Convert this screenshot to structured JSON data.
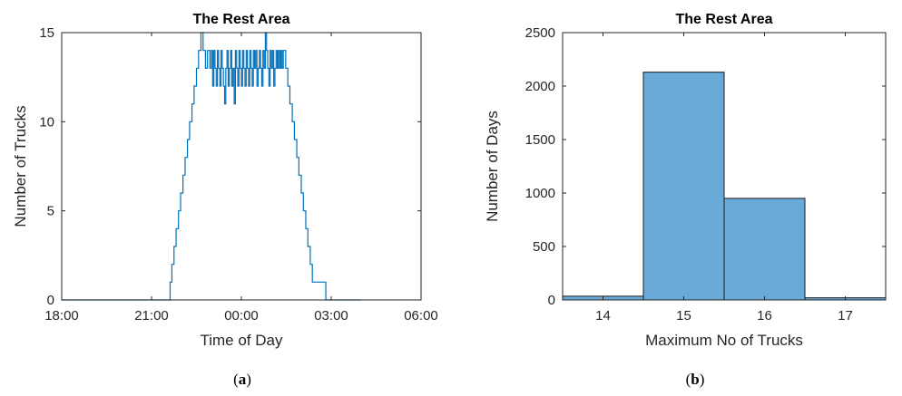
{
  "chart_data": [
    {
      "id": "a",
      "type": "line",
      "caption_letter": "a",
      "title": "The Rest Area",
      "xlabel": "Time of Day",
      "ylabel": "Number of Trucks",
      "xtick_labels": [
        "18:00",
        "21:00",
        "00:00",
        "03:00",
        "06:00"
      ],
      "xtick_hours": [
        0,
        3,
        6,
        9,
        12
      ],
      "xlim_hours": [
        0,
        12
      ],
      "ylim": [
        0,
        15
      ],
      "yticks": [
        0,
        5,
        10,
        15
      ],
      "color": "#0072BD",
      "series": [
        {
          "x_hours": [
            0,
            3.6,
            3.62,
            3.68,
            3.75,
            3.82,
            3.9,
            3.97,
            4.05,
            4.12,
            4.2,
            4.27,
            4.35,
            4.42,
            4.5,
            4.57,
            4.65,
            4.72,
            4.8,
            4.87,
            4.95,
            5.0,
            5.04,
            5.08,
            5.12,
            5.16,
            5.2,
            5.24,
            5.28,
            5.32,
            5.36,
            5.4,
            5.44,
            5.48,
            5.52,
            5.56,
            5.6,
            5.64,
            5.68,
            5.72,
            5.76,
            5.8,
            5.84,
            5.88,
            5.92,
            5.96,
            6.0,
            6.04,
            6.08,
            6.12,
            6.16,
            6.2,
            6.24,
            6.28,
            6.32,
            6.36,
            6.4,
            6.44,
            6.48,
            6.52,
            6.56,
            6.6,
            6.64,
            6.68,
            6.72,
            6.76,
            6.8,
            6.84,
            6.88,
            6.92,
            6.96,
            7.0,
            7.04,
            7.08,
            7.12,
            7.16,
            7.2,
            7.24,
            7.28,
            7.32,
            7.36,
            7.4,
            7.44,
            7.48,
            7.55,
            7.62,
            7.7,
            7.77,
            7.85,
            7.92,
            8.0,
            8.07,
            8.15,
            8.22,
            8.3,
            8.37,
            8.45,
            8.52,
            8.6,
            8.67,
            8.75,
            8.82,
            8.87,
            8.9,
            10.0
          ],
          "y": [
            0,
            0,
            1,
            2,
            3,
            4,
            5,
            6,
            7,
            8,
            9,
            10,
            11,
            12,
            13,
            14,
            15,
            14,
            13,
            14,
            13,
            14,
            12,
            14,
            13,
            12,
            14,
            13,
            12,
            14,
            13,
            12,
            11,
            13,
            14,
            12,
            13,
            14,
            12,
            13,
            11,
            14,
            13,
            12,
            14,
            13,
            12,
            14,
            13,
            12,
            14,
            13,
            12,
            14,
            13,
            12,
            14,
            13,
            14,
            12,
            13,
            14,
            13,
            12,
            14,
            13,
            15,
            14,
            13,
            12,
            14,
            13,
            14,
            12,
            13,
            14,
            13,
            14,
            13,
            14,
            13,
            14,
            14,
            13,
            12,
            11,
            10,
            9,
            8,
            7,
            6,
            5,
            4,
            3,
            2,
            1,
            1,
            1,
            1,
            1,
            1,
            0,
            0,
            0,
            0
          ]
        }
      ]
    },
    {
      "id": "b",
      "type": "bar",
      "caption_letter": "b",
      "title": "The Rest Area",
      "xlabel": "Maximum No of Trucks",
      "ylabel": "Number of Days",
      "categories": [
        "14",
        "15",
        "16",
        "17"
      ],
      "bin_edges": [
        13.5,
        14.5,
        15.5,
        16.5,
        17.5
      ],
      "values": [
        35,
        2130,
        950,
        20
      ],
      "xlim": [
        13.5,
        17.5
      ],
      "ylim": [
        0,
        2500
      ],
      "yticks": [
        0,
        500,
        1000,
        1500,
        2000,
        2500
      ],
      "color": "#4DBEEE",
      "bar_fill": "#6aaad9"
    }
  ]
}
